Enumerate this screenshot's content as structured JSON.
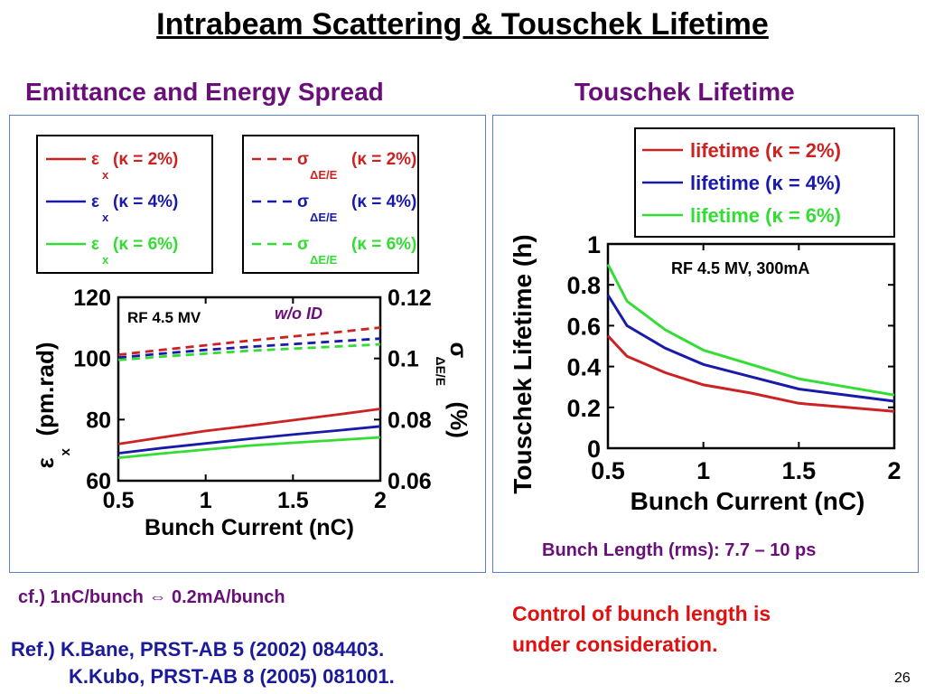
{
  "slide": {
    "title": "Intrabeam Scattering & Touschek Lifetime",
    "left_heading": "Emittance and Energy Spread",
    "right_heading": "Touschek Lifetime",
    "cf_note": "cf.) 1nC/bunch ⇔ 0.2mA/bunch",
    "ref_line1": "Ref.) K.Bane, PRST-AB 5 (2002) 084403.",
    "ref_line2": "K.Kubo, PRST-AB 8 (2005) 081001.",
    "control_note_line1": "Control of bunch length is",
    "control_note_line2": "under consideration.",
    "bunch_length": "Bunch Length (rms): 7.7 – 10 ps",
    "page_number": "26"
  },
  "colors": {
    "red": "#cc2222",
    "blue": "#1a1aaa",
    "green": "#33dd33",
    "title_purple": "#6a0f7a",
    "note_red": "#e01010",
    "ref_blue": "#1a1a9a"
  },
  "chart_data": [
    {
      "type": "line",
      "annotation_box": "RF 4.5 MV",
      "annotation_note": "w/o ID",
      "xlabel": "Bunch Current (nC)",
      "ylabel_left_symbol": "ε",
      "ylabel_left_sub": "x",
      "ylabel_left_unit": "(pm.rad)",
      "ylabel_right_symbol": "σ",
      "ylabel_right_sub": "ΔE/E",
      "ylabel_right_unit": "(%)",
      "xlim": [
        0.5,
        2
      ],
      "ylim_left": [
        60,
        120
      ],
      "ylim_right": [
        0.06,
        0.12
      ],
      "x_ticks": [
        "0.5",
        "1",
        "1.5",
        "2"
      ],
      "y_ticks_left": [
        "60",
        "80",
        "100",
        "120"
      ],
      "y_ticks_right": [
        "0.06",
        "0.08",
        "0.1",
        "0.12"
      ],
      "x": [
        0.5,
        0.75,
        1.0,
        1.25,
        1.5,
        1.75,
        2.0
      ],
      "legend_left": [
        {
          "symbol": "ε",
          "sub": "x",
          "text": "(κ = 2%)",
          "color": "#cc2222"
        },
        {
          "symbol": "ε",
          "sub": "x",
          "text": "(κ = 4%)",
          "color": "#1a1aaa"
        },
        {
          "symbol": "ε",
          "sub": "x",
          "text": "(κ = 6%)",
          "color": "#33dd33"
        }
      ],
      "legend_right": [
        {
          "symbol": "σ",
          "sub": "ΔE/E",
          "text": "(κ = 2%)",
          "color": "#cc2222"
        },
        {
          "symbol": "σ",
          "sub": "ΔE/E",
          "text": "(κ = 4%)",
          "color": "#1a1aaa"
        },
        {
          "symbol": "σ",
          "sub": "ΔE/E",
          "text": "(κ = 6%)",
          "color": "#33dd33"
        }
      ],
      "series": [
        {
          "name": "εx (κ = 2%)",
          "axis": "left",
          "style": "solid",
          "color": "#cc2222",
          "values": [
            72,
            74.2,
            76.3,
            78,
            79.8,
            81.6,
            83.5
          ]
        },
        {
          "name": "εx (κ = 4%)",
          "axis": "left",
          "style": "solid",
          "color": "#1a1aaa",
          "values": [
            69,
            70.7,
            72.2,
            73.7,
            75.1,
            76.4,
            77.8
          ]
        },
        {
          "name": "εx (κ = 6%)",
          "axis": "left",
          "style": "solid",
          "color": "#33dd33",
          "values": [
            67.5,
            68.9,
            70.2,
            71.5,
            72.4,
            73.3,
            74.2
          ]
        },
        {
          "name": "σΔE/E (κ = 2%)",
          "axis": "right",
          "style": "dashed",
          "color": "#cc2222",
          "values": [
            0.1012,
            0.1028,
            0.1043,
            0.1058,
            0.1072,
            0.1086,
            0.1101
          ]
        },
        {
          "name": "σΔE/E (κ = 4%)",
          "axis": "right",
          "style": "dashed",
          "color": "#1a1aaa",
          "values": [
            0.1003,
            0.1016,
            0.1028,
            0.1038,
            0.1047,
            0.1056,
            0.1065
          ]
        },
        {
          "name": "σΔE/E (κ = 6%)",
          "axis": "right",
          "style": "dashed",
          "color": "#33dd33",
          "values": [
            0.0995,
            0.1006,
            0.1016,
            0.1025,
            0.1032,
            0.1039,
            0.1046
          ]
        }
      ]
    },
    {
      "type": "line",
      "annotation_box": "RF 4.5 MV, 300mA",
      "xlabel": "Bunch Current (nC)",
      "ylabel": "Touschek Lifetime (h)",
      "xlim": [
        0.5,
        2
      ],
      "ylim": [
        0,
        1
      ],
      "x_ticks": [
        "0.5",
        "1",
        "1.5",
        "2"
      ],
      "y_ticks": [
        "0",
        "0.2",
        "0.4",
        "0.6",
        "0.8",
        "1"
      ],
      "x": [
        0.5,
        0.6,
        0.8,
        1.0,
        1.25,
        1.5,
        1.75,
        2.0
      ],
      "legend": [
        {
          "text": "lifetime (κ = 2%)",
          "color": "#cc2222"
        },
        {
          "text": "lifetime (κ = 4%)",
          "color": "#1a1aaa"
        },
        {
          "text": "lifetime (κ = 6%)",
          "color": "#33dd33"
        }
      ],
      "series": [
        {
          "name": "lifetime (κ = 2%)",
          "color": "#cc2222",
          "values": [
            0.55,
            0.45,
            0.37,
            0.31,
            0.27,
            0.22,
            0.2,
            0.18
          ]
        },
        {
          "name": "lifetime (κ = 4%)",
          "color": "#1a1aaa",
          "values": [
            0.75,
            0.6,
            0.49,
            0.41,
            0.35,
            0.29,
            0.26,
            0.23
          ]
        },
        {
          "name": "lifetime (κ = 6%)",
          "color": "#33dd33",
          "values": [
            0.9,
            0.72,
            0.58,
            0.48,
            0.41,
            0.34,
            0.3,
            0.26
          ]
        }
      ]
    }
  ]
}
